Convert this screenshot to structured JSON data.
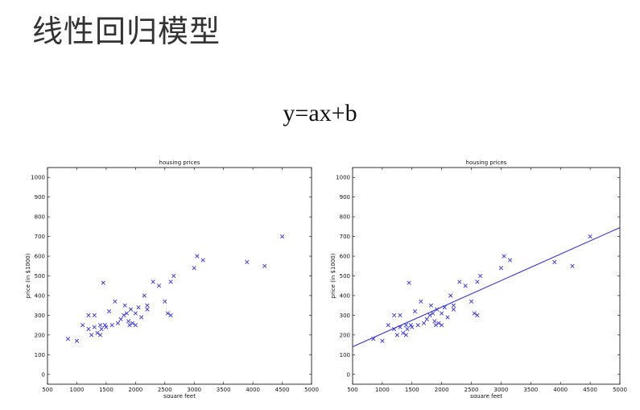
{
  "slide": {
    "title": "线性回归模型",
    "formula": "y=ax+b"
  },
  "chart_data": [
    {
      "type": "scatter",
      "title": "housing prices",
      "xlabel": "square feet",
      "ylabel": "price (in $1000)",
      "xlim": [
        500,
        5000
      ],
      "ylim": [
        -50,
        1050
      ],
      "xticks": [
        500,
        1000,
        1500,
        2000,
        2500,
        3000,
        3500,
        4000,
        4500,
        5000
      ],
      "yticks": [
        0,
        100,
        200,
        300,
        400,
        500,
        600,
        700,
        800,
        900,
        1000
      ],
      "marker": "x",
      "marker_color": "#3333cc",
      "grid": false,
      "legend": "none",
      "series": [
        {
          "x": [
            850,
            1000,
            1100,
            1200,
            1200,
            1250,
            1300,
            1300,
            1350,
            1400,
            1400,
            1420,
            1450,
            1480,
            1500,
            1550,
            1600,
            1650,
            1700,
            1750,
            1800,
            1820,
            1850,
            1880,
            1900,
            1920,
            1950,
            2000,
            2000,
            2050,
            2100,
            2150,
            2200,
            2200,
            2300,
            2400,
            2500,
            2550,
            2600,
            2600,
            2650,
            3000,
            3050,
            3150,
            3900,
            4200,
            4500
          ],
          "y": [
            180,
            170,
            250,
            300,
            230,
            200,
            300,
            240,
            210,
            250,
            200,
            230,
            465,
            250,
            240,
            320,
            250,
            370,
            260,
            280,
            300,
            350,
            310,
            270,
            250,
            330,
            260,
            310,
            250,
            340,
            290,
            400,
            330,
            350,
            470,
            450,
            370,
            310,
            300,
            470,
            500,
            540,
            600,
            580,
            570,
            550,
            700
          ]
        }
      ]
    },
    {
      "type": "scatter",
      "title": "housing prices",
      "xlabel": "square feet",
      "ylabel": "price (in $1000)",
      "xlim": [
        500,
        5000
      ],
      "ylim": [
        -50,
        1050
      ],
      "xticks": [
        500,
        1000,
        1500,
        2000,
        2500,
        3000,
        3500,
        4000,
        4500,
        5000
      ],
      "yticks": [
        0,
        100,
        200,
        300,
        400,
        500,
        600,
        700,
        800,
        900,
        1000
      ],
      "marker": "x",
      "marker_color": "#3333cc",
      "grid": false,
      "legend": "none",
      "series": [
        {
          "x": [
            850,
            1000,
            1100,
            1200,
            1200,
            1250,
            1300,
            1300,
            1350,
            1400,
            1400,
            1420,
            1450,
            1480,
            1500,
            1550,
            1600,
            1650,
            1700,
            1750,
            1800,
            1820,
            1850,
            1880,
            1900,
            1920,
            1950,
            2000,
            2000,
            2050,
            2100,
            2150,
            2200,
            2200,
            2300,
            2400,
            2500,
            2550,
            2600,
            2600,
            2650,
            3000,
            3050,
            3150,
            3900,
            4200,
            4500
          ],
          "y": [
            180,
            170,
            250,
            300,
            230,
            200,
            300,
            240,
            210,
            250,
            200,
            230,
            465,
            250,
            240,
            320,
            250,
            370,
            260,
            280,
            300,
            350,
            310,
            270,
            250,
            330,
            260,
            310,
            250,
            340,
            290,
            400,
            330,
            350,
            470,
            450,
            370,
            310,
            300,
            470,
            500,
            540,
            600,
            580,
            570,
            550,
            700
          ]
        }
      ],
      "fit_line": {
        "x": [
          500,
          5000
        ],
        "y": [
          140,
          745
        ],
        "color": "#3333cc"
      }
    }
  ]
}
